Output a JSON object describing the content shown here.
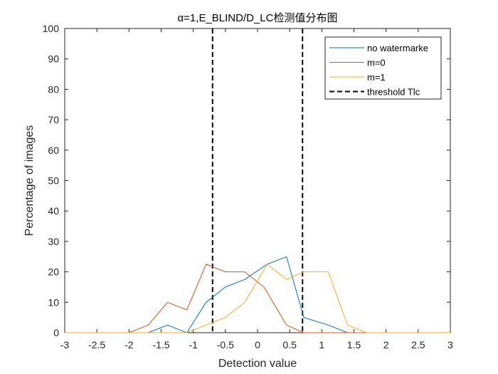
{
  "chart_data": {
    "type": "line",
    "title": "α=1,E_BLIND/D_LC检测值分布图",
    "xlabel": "Detection value",
    "ylabel": "Percentage of images",
    "xlim": [
      -3,
      3
    ],
    "ylim": [
      0,
      100
    ],
    "xticks": [
      -3,
      -2.5,
      -2,
      -1.5,
      -1,
      -0.5,
      0,
      0.5,
      1,
      1.5,
      2,
      2.5,
      3
    ],
    "xtick_labels": [
      "-3",
      "-2.5",
      "-2",
      "-1.5",
      "-1",
      "-0.5",
      "0",
      "0.5",
      "1",
      "1.5",
      "2",
      "2.5",
      "3"
    ],
    "yticks": [
      0,
      10,
      20,
      30,
      40,
      50,
      60,
      70,
      80,
      90,
      100
    ],
    "ytick_labels": [
      "0",
      "10",
      "20",
      "30",
      "40",
      "50",
      "60",
      "70",
      "80",
      "90",
      "100"
    ],
    "grid": false,
    "legend_position": "top-right",
    "series": [
      {
        "name": "no watermarke",
        "color": "#0072BD",
        "style": "solid",
        "x": [
          -3,
          -2.5,
          -2,
          -1.7,
          -1.4,
          -1.1,
          -0.8,
          -0.5,
          -0.2,
          0.15,
          0.45,
          0.72,
          1.1,
          1.4,
          1.7,
          2,
          2.5,
          3
        ],
        "y": [
          0,
          0,
          0,
          0,
          2.5,
          0,
          10,
          15,
          17.5,
          22.5,
          25,
          5,
          2.5,
          0,
          0,
          0,
          0,
          0
        ]
      },
      {
        "name": "m=0",
        "color": "#D95319",
        "style": "solid",
        "x": [
          -3,
          -2.5,
          -2,
          -1.7,
          -1.4,
          -1.1,
          -0.8,
          -0.5,
          -0.2,
          0.1,
          0.45,
          0.72,
          1.1,
          1.4,
          1.7,
          2,
          2.5,
          3
        ],
        "y": [
          0,
          0,
          0,
          2.5,
          10,
          7.5,
          22.5,
          20,
          20,
          15,
          2.5,
          0,
          0,
          0,
          0,
          0,
          0,
          0
        ]
      },
      {
        "name": "m=1",
        "color": "#EDB120",
        "style": "solid",
        "x": [
          -3,
          -2.5,
          -2,
          -1.7,
          -1.4,
          -1.1,
          -0.8,
          -0.5,
          -0.2,
          0.15,
          0.45,
          0.72,
          1.1,
          1.4,
          1.7,
          2,
          2.5,
          3
        ],
        "y": [
          0,
          0,
          0,
          0,
          0,
          0,
          2.5,
          5,
          10,
          22.5,
          17.5,
          20,
          20,
          2.5,
          0,
          0,
          0,
          0
        ]
      }
    ],
    "threshold": {
      "name": "threshold Tlc",
      "color": "#000000",
      "style": "dashed",
      "x_values": [
        -0.7,
        0.7
      ]
    }
  }
}
